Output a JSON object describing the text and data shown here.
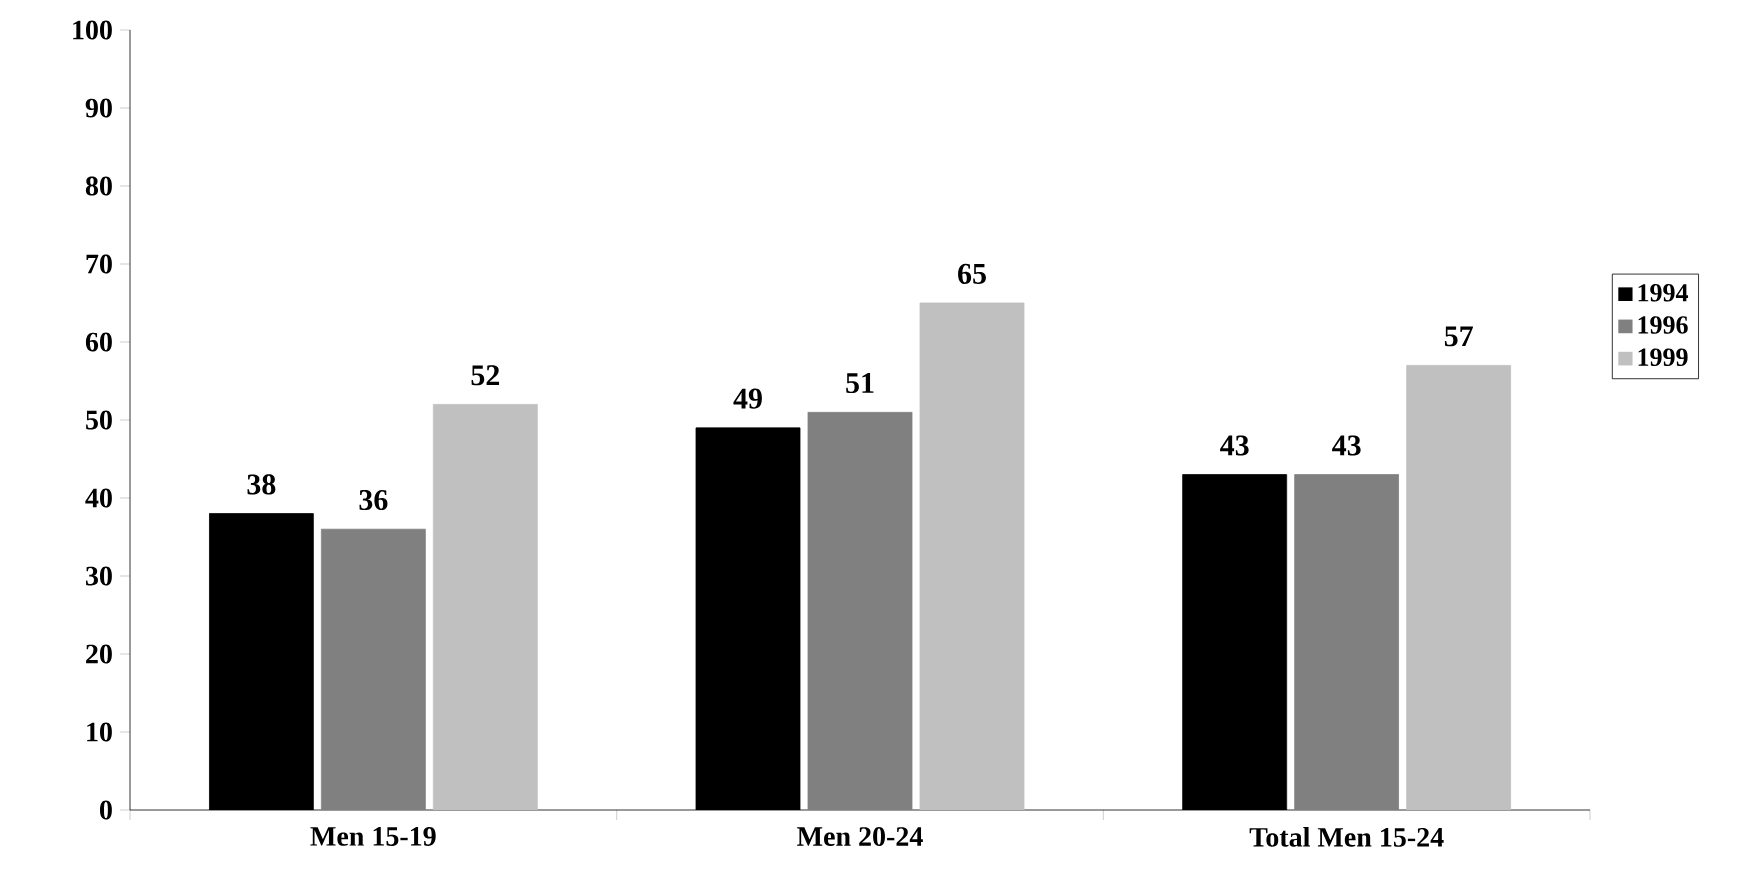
{
  "chart_data": {
    "type": "bar",
    "categories": [
      "Men 15-19",
      "Men 20-24",
      "Total Men 15-24"
    ],
    "series": [
      {
        "name": "1994",
        "color": "#000000",
        "values": [
          38,
          49,
          43
        ]
      },
      {
        "name": "1996",
        "color": "#808080",
        "values": [
          36,
          51,
          43
        ]
      },
      {
        "name": "1999",
        "color": "#c0c0c0",
        "values": [
          52,
          65,
          57
        ]
      }
    ],
    "ylim": [
      0,
      100
    ],
    "yticks": [
      0,
      10,
      20,
      30,
      40,
      50,
      60,
      70,
      80,
      90,
      100
    ],
    "data_labels": true,
    "grid": false,
    "legend": "right"
  }
}
